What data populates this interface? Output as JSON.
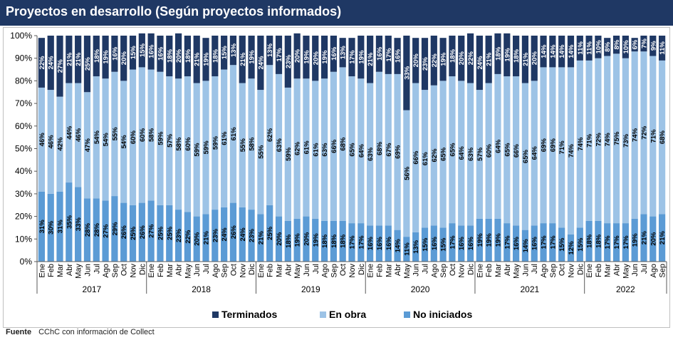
{
  "title": "Proyectos en desarrollo (Según proyectos informados)",
  "footer": {
    "label": "Fuente",
    "text": "CChC con información de Collect"
  },
  "colors": {
    "title_bg": "#1f3864",
    "terminados": "#1f3864",
    "en_obra": "#9dc3e6",
    "no_iniciados": "#5b9bd5"
  },
  "chart_data": {
    "type": "bar",
    "stacked": true,
    "ylim": [
      0,
      100
    ],
    "yticks": [
      0,
      10,
      20,
      30,
      40,
      50,
      60,
      70,
      80,
      90,
      100
    ],
    "ytick_labels": [
      "0%",
      "10%",
      "20%",
      "30%",
      "40%",
      "50%",
      "60%",
      "70%",
      "80%",
      "90%",
      "100%"
    ],
    "grid": false,
    "legend_position": "bottom",
    "years": [
      {
        "label": "2017",
        "count": 12
      },
      {
        "label": "2018",
        "count": 12
      },
      {
        "label": "2019",
        "count": 12
      },
      {
        "label": "2020",
        "count": 12
      },
      {
        "label": "2021",
        "count": 12
      },
      {
        "label": "2022",
        "count": 9
      }
    ],
    "categories": [
      "Ene",
      "Feb",
      "Mar",
      "Abr",
      "May",
      "Jun",
      "Jul",
      "Ago",
      "Sep",
      "Oct",
      "Nov",
      "Dic",
      "Ene",
      "Feb",
      "Mar",
      "Abr",
      "May",
      "Jun",
      "Jul",
      "Ago",
      "Sep",
      "Oct",
      "Nov",
      "Dic",
      "Ene",
      "Feb",
      "Mar",
      "Abr",
      "May",
      "Jun",
      "Jul",
      "Ago",
      "Sep",
      "Oct",
      "Nov",
      "Dic",
      "Ene",
      "Feb",
      "Mar",
      "Abr",
      "May",
      "Jun",
      "Jul",
      "Ago",
      "Sep",
      "Oct",
      "Nov",
      "Dic",
      "Ene",
      "Feb",
      "Mar",
      "Abr",
      "May",
      "Jun",
      "Jul",
      "Ago",
      "Sep",
      "Oct",
      "Nov",
      "Dic",
      "Ene",
      "Feb",
      "Mar",
      "Abr",
      "May",
      "Jun",
      "Jul",
      "Ago",
      "Sep"
    ],
    "series": [
      {
        "name": "No iniciados",
        "color": "#5b9bd5",
        "values": [
          31,
          30,
          31,
          35,
          33,
          28,
          28,
          27,
          29,
          26,
          25,
          26,
          27,
          25,
          25,
          23,
          22,
          20,
          21,
          23,
          24,
          26,
          24,
          23,
          21,
          25,
          20,
          18,
          19,
          20,
          19,
          18,
          18,
          18,
          17,
          17,
          16,
          16,
          16,
          14,
          11,
          13,
          15,
          16,
          15,
          17,
          16,
          16,
          19,
          19,
          19,
          17,
          16,
          14,
          16,
          17,
          17,
          15,
          12,
          15,
          18,
          18,
          17,
          17,
          17,
          19,
          21,
          20,
          21
        ]
      },
      {
        "name": "En obra",
        "color": "#9dc3e6",
        "values": [
          46,
          46,
          42,
          44,
          46,
          47,
          54,
          54,
          55,
          54,
          60,
          60,
          58,
          59,
          57,
          58,
          60,
          59,
          59,
          59,
          61,
          61,
          55,
          58,
          55,
          62,
          63,
          59,
          62,
          61,
          61,
          63,
          66,
          68,
          65,
          64,
          63,
          68,
          67,
          69,
          56,
          66,
          61,
          62,
          65,
          65,
          64,
          63,
          57,
          60,
          64,
          65,
          66,
          65,
          64,
          69,
          69,
          71,
          74,
          74,
          71,
          72,
          74,
          75,
          73,
          74,
          72,
          71,
          68
        ]
      },
      {
        "name": "Terminados",
        "color": "#1f3864",
        "values": [
          22,
          24,
          27,
          21,
          21,
          25,
          18,
          19,
          16,
          20,
          15,
          15,
          16,
          16,
          18,
          20,
          18,
          21,
          19,
          18,
          15,
          13,
          21,
          19,
          24,
          13,
          17,
          23,
          20,
          19,
          20,
          19,
          16,
          13,
          17,
          19,
          21,
          16,
          17,
          16,
          33,
          20,
          23,
          22,
          19,
          18,
          20,
          22,
          24,
          21,
          18,
          19,
          18,
          21,
          20,
          14,
          14,
          14,
          14,
          11,
          11,
          10,
          8,
          8,
          10,
          6,
          7,
          9,
          11
        ]
      }
    ]
  }
}
